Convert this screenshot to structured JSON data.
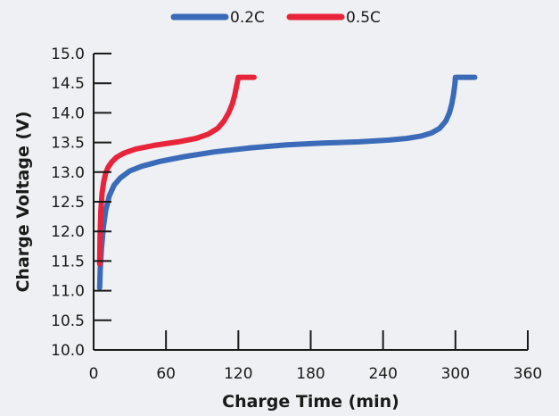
{
  "chart_data": {
    "type": "line",
    "xlabel": "Charge Time (min)",
    "ylabel": "Charge Voltage (V)",
    "xlim": [
      0,
      360
    ],
    "ylim": [
      10.0,
      15.0
    ],
    "xticks": [
      "0",
      "60",
      "120",
      "180",
      "240",
      "300",
      "360"
    ],
    "yticks": [
      "10.0",
      "10.5",
      "11.0",
      "11.5",
      "12.0",
      "12.5",
      "13.0",
      "13.5",
      "14.0",
      "14.5",
      "15.0"
    ],
    "grid": false,
    "legend_position": "top-center",
    "series": [
      {
        "name": "0.2C",
        "color": "#3b6bb8",
        "x": [
          5,
          5.5,
          6.5,
          8,
          10,
          13,
          17,
          22,
          30,
          40,
          55,
          75,
          100,
          130,
          160,
          190,
          220,
          245,
          260,
          272,
          280,
          287,
          292,
          295,
          297,
          298.5,
          299.5,
          300,
          306,
          316
        ],
        "y": [
          11.05,
          11.35,
          11.7,
          12.05,
          12.35,
          12.6,
          12.78,
          12.9,
          13.02,
          13.1,
          13.18,
          13.26,
          13.34,
          13.41,
          13.46,
          13.49,
          13.51,
          13.54,
          13.57,
          13.61,
          13.66,
          13.74,
          13.86,
          14.0,
          14.15,
          14.32,
          14.48,
          14.6,
          14.6,
          14.6
        ]
      },
      {
        "name": "0.5C",
        "color": "#e8243a",
        "x": [
          5,
          5.3,
          6,
          7,
          8.5,
          10,
          12,
          15,
          19,
          25,
          35,
          50,
          70,
          85,
          95,
          103,
          108,
          112,
          115,
          117,
          118.5,
          119.5,
          120,
          126,
          133
        ],
        "y": [
          11.45,
          11.9,
          12.35,
          12.65,
          12.85,
          12.98,
          13.08,
          13.17,
          13.25,
          13.32,
          13.39,
          13.45,
          13.51,
          13.57,
          13.64,
          13.74,
          13.86,
          14.0,
          14.15,
          14.3,
          14.45,
          14.55,
          14.6,
          14.6,
          14.6
        ]
      }
    ]
  }
}
